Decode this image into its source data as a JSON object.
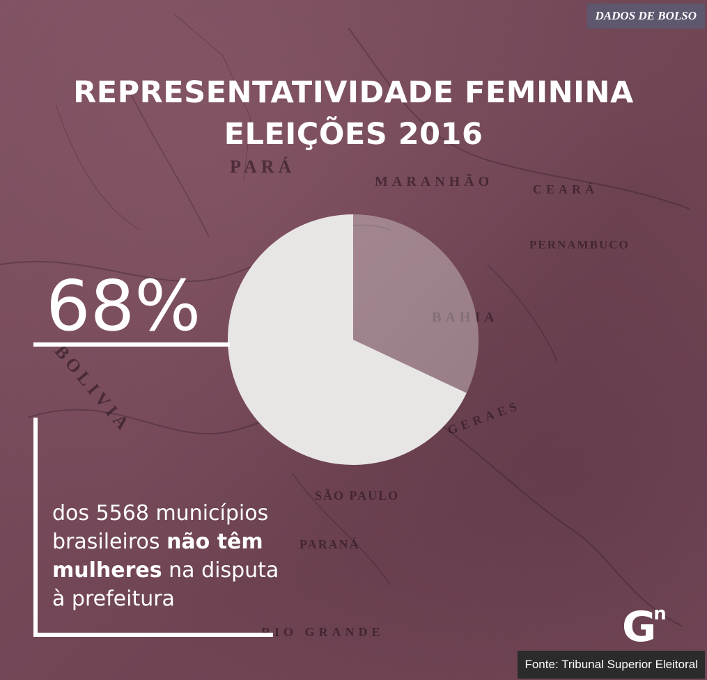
{
  "tag": "DADOS DE BOLSO",
  "title_lines": [
    "REPRESENTATIVIDADE FEMININA",
    "ELEIÇÕES 2016"
  ],
  "big_stat": "68%",
  "description": {
    "part1": "dos 5568 municípios brasileiros ",
    "bold1": "não têm mulheres",
    "part2": " na disputa à prefeitura"
  },
  "logo": {
    "letter": "G",
    "sup": "n"
  },
  "source": "Fonte: Tribunal Superior Eleitoral",
  "map_labels": [
    "PARÁ",
    "MARANHÃO",
    "PERNAMBUCO",
    "BAHIA",
    "SÃO PAULO",
    "BOLIVIA",
    "PARANÁ",
    "CEARÁ",
    "RIO GRANDE",
    "GERAES"
  ],
  "colors": {
    "background": "#7a4d5d",
    "pie_main": "#e8e5e5",
    "pie_rest": "rgba(232,229,229,0.38)",
    "tag_bg": "#5e576e",
    "source_bg": "#2b2b2b"
  },
  "chart_data": {
    "type": "pie",
    "values": [
      68,
      32
    ],
    "labels": [
      "",
      ""
    ],
    "unit": "%"
  }
}
